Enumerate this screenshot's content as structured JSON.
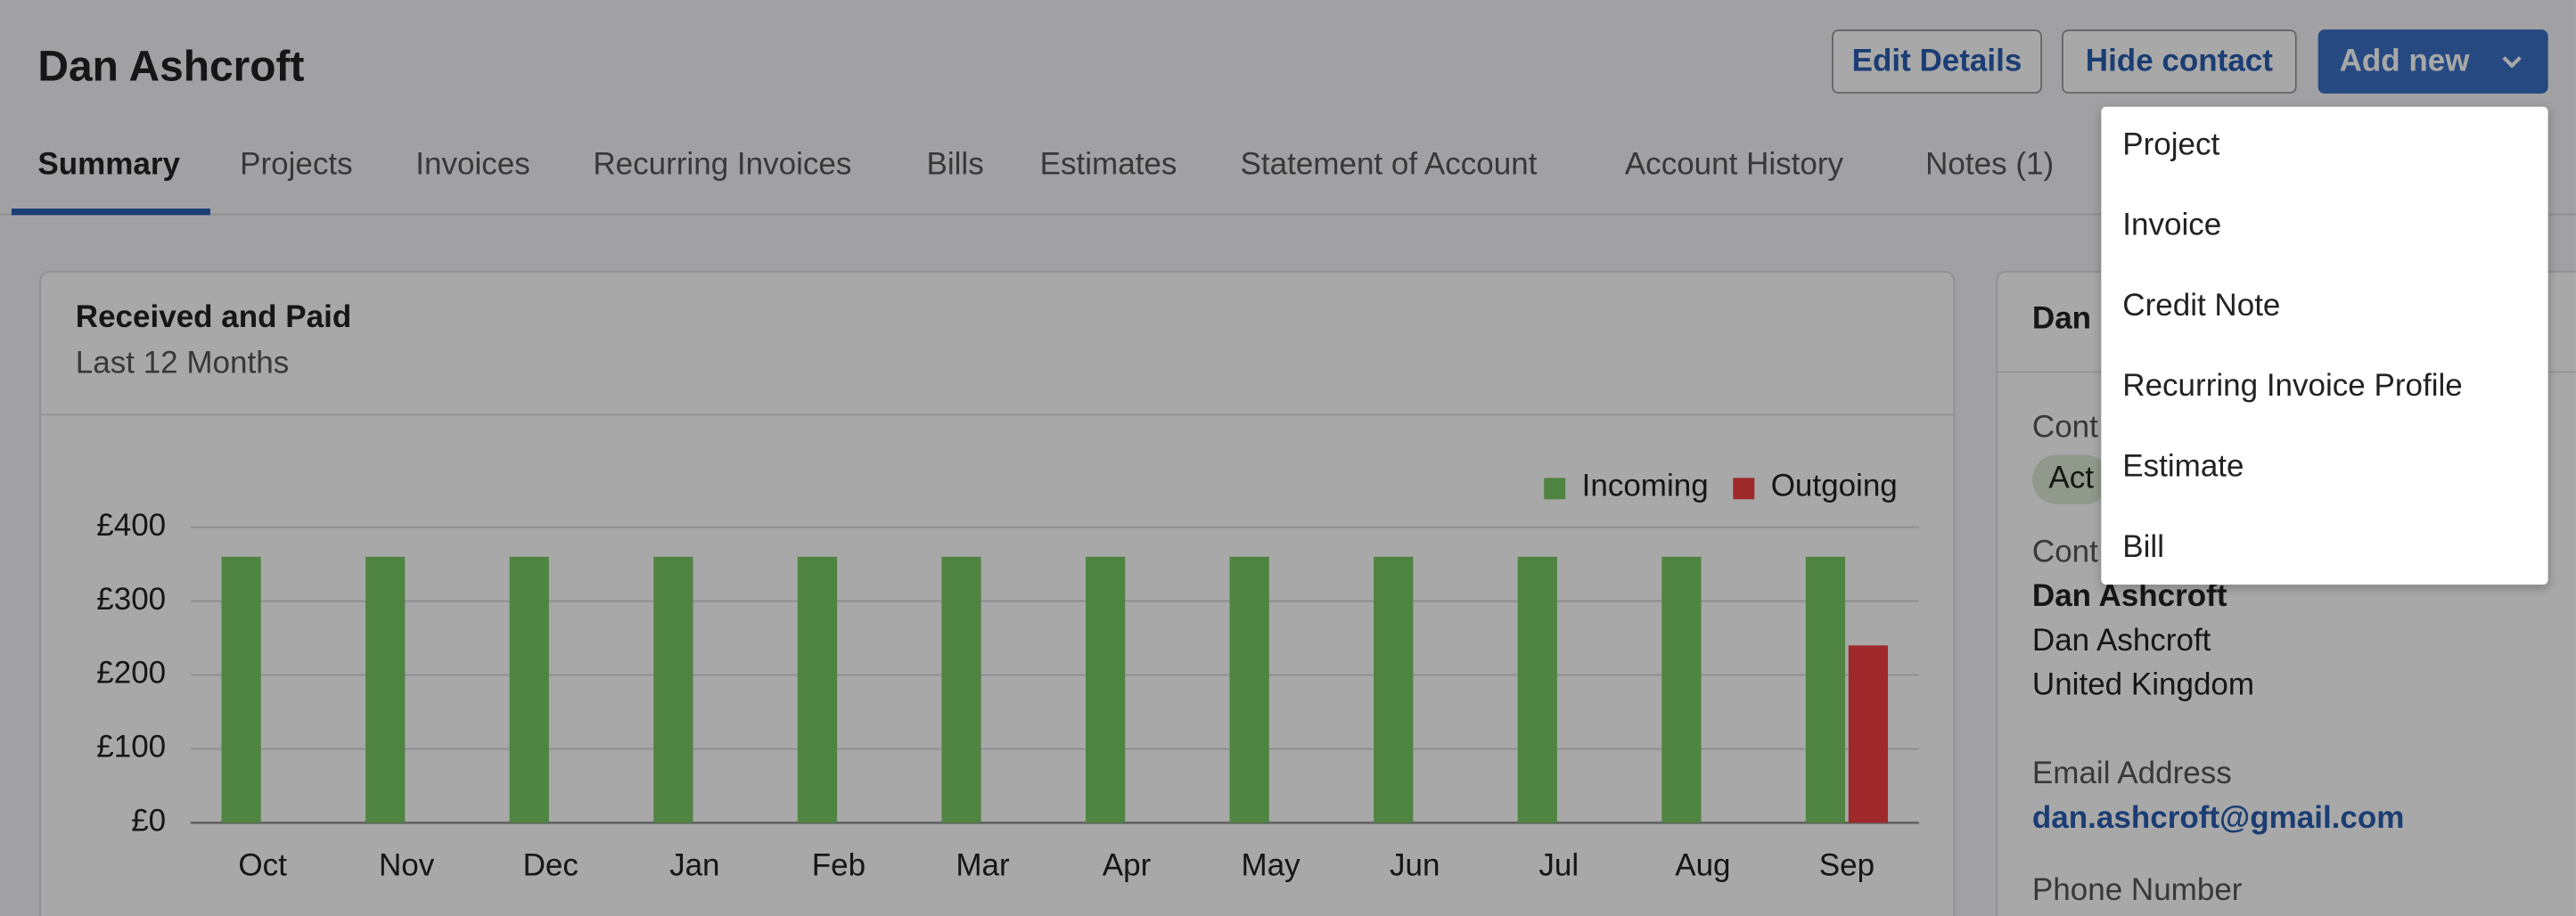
{
  "header": {
    "title": "Dan Ashcroft",
    "buttons": [
      "Edit Details",
      "Hide contact",
      "Add new"
    ]
  },
  "tabs": [
    "Summary",
    "Projects",
    "Invoices",
    "Recurring Invoices",
    "Bills",
    "Estimates",
    "Statement of Account",
    "Account History",
    "Notes (1)"
  ],
  "card": {
    "title": "Received and Paid",
    "subtitle": "Last 12 Months"
  },
  "chart_data": {
    "type": "bar",
    "categories": [
      "Oct",
      "Nov",
      "Dec",
      "Jan",
      "Feb",
      "Mar",
      "Apr",
      "May",
      "Jun",
      "Jul",
      "Aug",
      "Sep"
    ],
    "series": [
      {
        "name": "Incoming",
        "color": "#79c864",
        "values": [
          360,
          360,
          360,
          360,
          360,
          360,
          360,
          360,
          360,
          360,
          360,
          360
        ]
      },
      {
        "name": "Outgoing",
        "color": "#f23e40",
        "values": [
          0,
          0,
          0,
          0,
          0,
          0,
          0,
          0,
          0,
          0,
          0,
          240
        ]
      }
    ],
    "ylim": [
      0,
      400
    ],
    "yticks": [
      {
        "value": 0,
        "label": "£0"
      },
      {
        "value": 100,
        "label": "£100"
      },
      {
        "value": 200,
        "label": "£200"
      },
      {
        "value": 300,
        "label": "£300"
      },
      {
        "value": 400,
        "label": "£400"
      }
    ],
    "grid": true,
    "legend": "top-right"
  },
  "sidebar": {
    "fragments": [
      "Dan",
      "Cont",
      "Act",
      "Cont"
    ],
    "name_bold": "Dan Ashcroft",
    "name": "Dan Ashcroft",
    "country": "United Kingdom",
    "email_label": "Email Address",
    "email": "dan.ashcroft@gmail.com",
    "phone_label": "Phone Number"
  },
  "dropdown": [
    "Project",
    "Invoice",
    "Credit Note",
    "Recurring Invoice Profile",
    "Estimate",
    "Bill"
  ]
}
